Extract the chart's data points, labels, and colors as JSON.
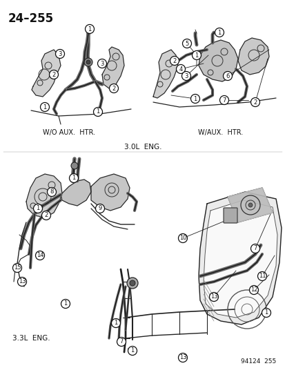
{
  "title": "24–255",
  "background_color": "#ffffff",
  "text_color": "#1a1a1a",
  "label_wo": "W/O AUX.  HTR.",
  "label_w": "W/AUX.  HTR.",
  "label_3ol": "3.0L  ENG.",
  "label_33l": "3.3L  ENG.",
  "label_ref": "94124  255",
  "fig_width": 4.14,
  "fig_height": 5.33,
  "dpi": 100,
  "top_left_circles": [
    [
      130,
      42,
      "1"
    ],
    [
      87,
      78,
      "3"
    ],
    [
      148,
      92,
      "3"
    ],
    [
      78,
      108,
      "2"
    ],
    [
      165,
      128,
      "2"
    ],
    [
      65,
      155,
      "1"
    ],
    [
      142,
      162,
      "1"
    ]
  ],
  "top_right_circles": [
    [
      318,
      47,
      "1"
    ],
    [
      271,
      63,
      "5"
    ],
    [
      285,
      80,
      "1"
    ],
    [
      253,
      88,
      "2"
    ],
    [
      262,
      100,
      "4"
    ],
    [
      270,
      110,
      "3"
    ],
    [
      330,
      110,
      "6"
    ],
    [
      283,
      143,
      "1"
    ],
    [
      325,
      145,
      "7"
    ],
    [
      370,
      148,
      "2"
    ]
  ],
  "bot_left_circles": [
    [
      107,
      258,
      "1"
    ],
    [
      75,
      278,
      "8"
    ],
    [
      55,
      302,
      "1"
    ],
    [
      67,
      312,
      "2"
    ],
    [
      145,
      302,
      "9"
    ],
    [
      58,
      370,
      "14"
    ],
    [
      25,
      388,
      "15"
    ],
    [
      32,
      408,
      "13"
    ],
    [
      95,
      440,
      "1"
    ]
  ],
  "bot_right_circles": [
    [
      265,
      345,
      "10"
    ],
    [
      370,
      360,
      "7"
    ],
    [
      380,
      400,
      "11"
    ],
    [
      368,
      420,
      "12"
    ],
    [
      310,
      430,
      "13"
    ],
    [
      386,
      453,
      "1"
    ]
  ],
  "bot_mid_circles": [
    [
      168,
      468,
      "1"
    ],
    [
      176,
      495,
      "7"
    ],
    [
      192,
      508,
      "1"
    ],
    [
      265,
      518,
      "13"
    ]
  ]
}
